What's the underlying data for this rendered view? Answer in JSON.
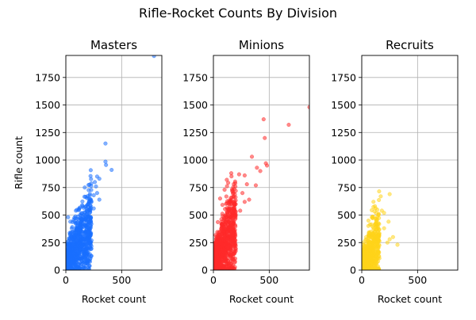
{
  "figure_title": "Rifle-Rocket Counts By Division",
  "chart_data": [
    {
      "type": "scatter",
      "title": "Masters",
      "xlabel": "Rocket count",
      "ylabel": "Rifle count",
      "xlim": [
        0,
        860
      ],
      "ylim": [
        0,
        1950
      ],
      "xticks": [
        0,
        500
      ],
      "yticks": [
        0,
        250,
        500,
        750,
        1000,
        1250,
        1500,
        1750
      ],
      "grid": true,
      "color": "#1a6fff",
      "cluster": {
        "x_range": [
          0,
          230
        ],
        "y_base": 60,
        "slope": 1.6,
        "spread": 150,
        "count": 900
      },
      "points": [
        {
          "x": 790,
          "y": 1945
        },
        {
          "x": 355,
          "y": 1150
        },
        {
          "x": 355,
          "y": 985
        },
        {
          "x": 360,
          "y": 955
        },
        {
          "x": 410,
          "y": 910
        },
        {
          "x": 280,
          "y": 850
        },
        {
          "x": 300,
          "y": 830
        },
        {
          "x": 260,
          "y": 800
        },
        {
          "x": 270,
          "y": 760
        },
        {
          "x": 280,
          "y": 700
        },
        {
          "x": 250,
          "y": 680
        },
        {
          "x": 230,
          "y": 620
        },
        {
          "x": 200,
          "y": 600
        },
        {
          "x": 150,
          "y": 580
        },
        {
          "x": 120,
          "y": 560
        },
        {
          "x": 90,
          "y": 540
        },
        {
          "x": 250,
          "y": 560
        },
        {
          "x": 300,
          "y": 640
        },
        {
          "x": 180,
          "y": 470
        },
        {
          "x": 160,
          "y": 280
        },
        {
          "x": 230,
          "y": 270
        },
        {
          "x": 20,
          "y": 480
        },
        {
          "x": 40,
          "y": 440
        },
        {
          "x": 130,
          "y": 430
        }
      ]
    },
    {
      "type": "scatter",
      "title": "Minions",
      "xlabel": "Rocket count",
      "ylabel": "",
      "xlim": [
        0,
        860
      ],
      "ylim": [
        0,
        1950
      ],
      "xticks": [
        0,
        500
      ],
      "yticks": [
        0,
        250,
        500,
        750,
        1000,
        1250,
        1500,
        1750
      ],
      "grid": true,
      "color": "#ff2a2a",
      "cluster": {
        "x_range": [
          0,
          200
        ],
        "y_base": 60,
        "slope": 1.8,
        "spread": 160,
        "count": 1000
      },
      "points": [
        {
          "x": 860,
          "y": 1480
        },
        {
          "x": 450,
          "y": 1370
        },
        {
          "x": 675,
          "y": 1320
        },
        {
          "x": 460,
          "y": 1200
        },
        {
          "x": 345,
          "y": 1030
        },
        {
          "x": 470,
          "y": 970
        },
        {
          "x": 480,
          "y": 950
        },
        {
          "x": 390,
          "y": 930
        },
        {
          "x": 420,
          "y": 900
        },
        {
          "x": 160,
          "y": 880
        },
        {
          "x": 230,
          "y": 870
        },
        {
          "x": 280,
          "y": 860
        },
        {
          "x": 120,
          "y": 820
        },
        {
          "x": 300,
          "y": 780
        },
        {
          "x": 380,
          "y": 770
        },
        {
          "x": 100,
          "y": 730
        },
        {
          "x": 200,
          "y": 720
        },
        {
          "x": 260,
          "y": 700
        },
        {
          "x": 320,
          "y": 640
        },
        {
          "x": 280,
          "y": 620
        },
        {
          "x": 180,
          "y": 560
        },
        {
          "x": 240,
          "y": 540
        },
        {
          "x": 60,
          "y": 650
        },
        {
          "x": 150,
          "y": 620
        }
      ]
    },
    {
      "type": "scatter",
      "title": "Recruits",
      "xlabel": "Rocket count",
      "ylabel": "",
      "xlim": [
        0,
        860
      ],
      "ylim": [
        0,
        1950
      ],
      "xticks": [
        0,
        500
      ],
      "yticks": [
        0,
        250,
        500,
        750,
        1000,
        1250,
        1500,
        1750
      ],
      "grid": true,
      "color": "#ffd31a",
      "cluster": {
        "x_range": [
          0,
          160
        ],
        "y_base": 40,
        "slope": 1.6,
        "spread": 130,
        "count": 650
      },
      "points": [
        {
          "x": 250,
          "y": 690
        },
        {
          "x": 170,
          "y": 670
        },
        {
          "x": 180,
          "y": 540
        },
        {
          "x": 200,
          "y": 520
        },
        {
          "x": 150,
          "y": 500
        },
        {
          "x": 240,
          "y": 440
        },
        {
          "x": 280,
          "y": 300
        },
        {
          "x": 250,
          "y": 280
        },
        {
          "x": 320,
          "y": 230
        },
        {
          "x": 230,
          "y": 250
        },
        {
          "x": 60,
          "y": 450
        },
        {
          "x": 90,
          "y": 480
        },
        {
          "x": 120,
          "y": 420
        },
        {
          "x": 200,
          "y": 380
        }
      ]
    }
  ]
}
